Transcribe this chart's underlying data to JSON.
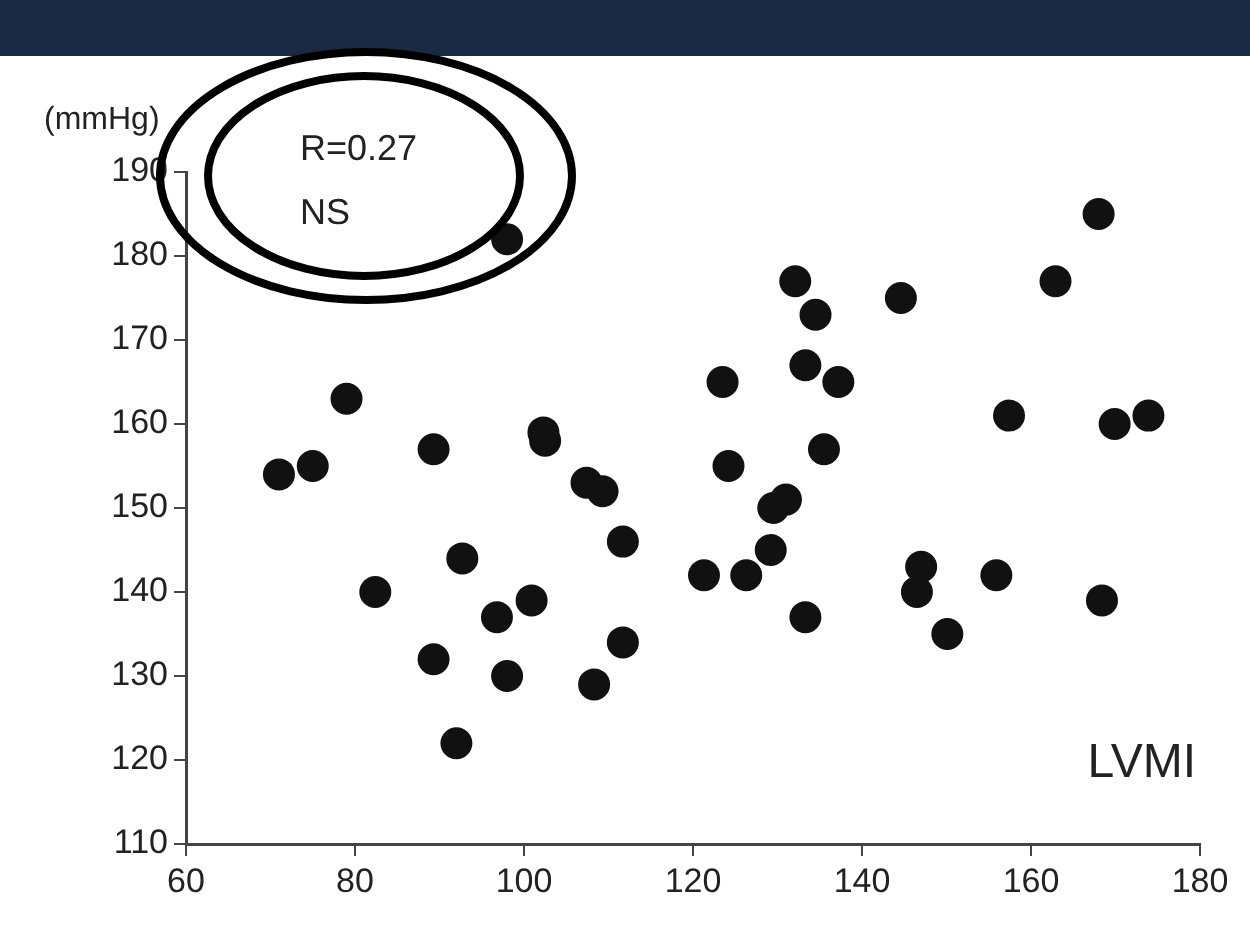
{
  "chart_data": {
    "type": "scatter",
    "xlabel": "LVMI",
    "ylabel": "(mmHg)",
    "annotations": [
      "R=0.27",
      "NS"
    ],
    "xlim": [
      60,
      180
    ],
    "xticks": [
      60,
      80,
      100,
      120,
      140,
      160,
      180
    ],
    "ylim": [
      110,
      190
    ],
    "yticks": [
      110,
      120,
      130,
      140,
      150,
      160,
      170,
      180,
      190
    ],
    "grid": false,
    "legend": false,
    "marker": "circle",
    "series": [
      {
        "color": "#111111",
        "x": [
          98,
          79,
          71,
          75,
          89.3,
          102.3,
          102.5,
          107.4,
          109.3,
          111.7,
          82.4,
          92.7,
          89.3,
          100.9,
          96.8,
          98,
          92,
          108.3,
          111.7,
          132.1,
          134.5,
          144.6,
          168,
          162.9,
          123.5,
          133.3,
          137.2,
          157.4,
          169.9,
          173.9,
          135.5,
          124.2,
          121.3,
          126.3,
          129.2,
          129.5,
          131,
          133.3,
          147,
          146.5,
          155.9,
          150.1,
          168.4
        ],
        "values": [
          182,
          163,
          154,
          155,
          157,
          159,
          158,
          153,
          152,
          146,
          140,
          144,
          132,
          139,
          137,
          130,
          122,
          129,
          134,
          177,
          173,
          175,
          185,
          177,
          165,
          167,
          165,
          161,
          160,
          161,
          157,
          155,
          142,
          142,
          145,
          150,
          151,
          137,
          143,
          140,
          142,
          135,
          139
        ]
      }
    ]
  }
}
